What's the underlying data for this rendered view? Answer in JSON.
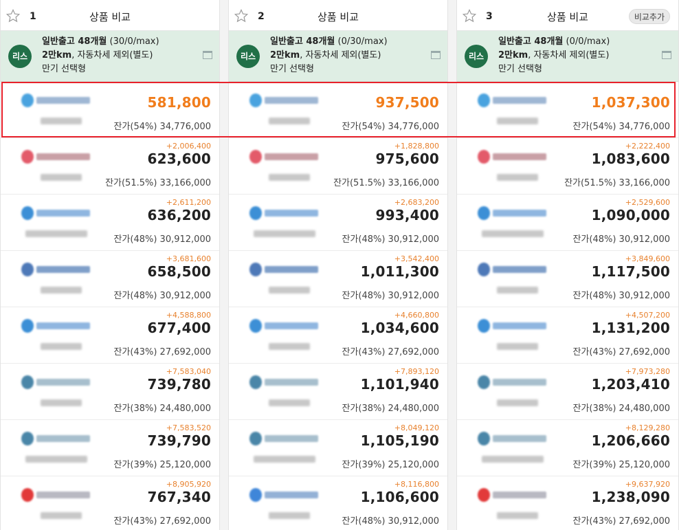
{
  "title": "상품 비교",
  "add_compare_label": "비교추가",
  "badge": "리스",
  "columns": [
    {
      "num": "1",
      "option": {
        "line1_bold": "일반출고 48개월",
        "line1_rest": " (30/0/max)",
        "line2_bold": "2만km",
        "line2_rest": ", 자동차세 제외(별도)",
        "line3": "만기 선택형"
      },
      "rows": [
        {
          "diff": "",
          "price": "581,800",
          "residual": "잔가(54%) 34,776,000",
          "logo": "kb"
        },
        {
          "diff": "+2,006,400",
          "price": "623,600",
          "residual": "잔가(51.5%) 33,166,000",
          "logo": "red"
        },
        {
          "diff": "+2,611,200",
          "price": "636,200",
          "residual": "잔가(48%) 30,912,000",
          "logo": "lotte"
        },
        {
          "diff": "+3,681,600",
          "price": "658,500",
          "residual": "잔가(48%) 30,912,000",
          "logo": "hyundai"
        },
        {
          "diff": "+4,588,800",
          "price": "677,400",
          "residual": "잔가(43%) 27,692,000",
          "logo": "lotte"
        },
        {
          "diff": "+7,583,040",
          "price": "739,780",
          "residual": "잔가(38%) 24,480,000",
          "logo": "shinhan"
        },
        {
          "diff": "+7,583,520",
          "price": "739,790",
          "residual": "잔가(39%) 25,120,000",
          "logo": "shinhan"
        },
        {
          "diff": "+8,905,920",
          "price": "767,340",
          "residual": "잔가(43%) 27,692,000",
          "logo": "redbox"
        }
      ]
    },
    {
      "num": "2",
      "option": {
        "line1_bold": "일반출고 48개월",
        "line1_rest": " (0/30/max)",
        "line2_bold": "2만km",
        "line2_rest": ", 자동차세 제외(별도)",
        "line3": "만기 선택형"
      },
      "rows": [
        {
          "diff": "",
          "price": "937,500",
          "residual": "잔가(54%) 34,776,000",
          "logo": "kb"
        },
        {
          "diff": "+1,828,800",
          "price": "975,600",
          "residual": "잔가(51.5%) 33,166,000",
          "logo": "red"
        },
        {
          "diff": "+2,683,200",
          "price": "993,400",
          "residual": "잔가(48%) 30,912,000",
          "logo": "lotte"
        },
        {
          "diff": "+3,542,400",
          "price": "1,011,300",
          "residual": "잔가(48%) 30,912,000",
          "logo": "hyundai"
        },
        {
          "diff": "+4,660,800",
          "price": "1,034,600",
          "residual": "잔가(43%) 27,692,000",
          "logo": "lotte"
        },
        {
          "diff": "+7,893,120",
          "price": "1,101,940",
          "residual": "잔가(38%) 24,480,000",
          "logo": "shinhan"
        },
        {
          "diff": "+8,049,120",
          "price": "1,105,190",
          "residual": "잔가(39%) 25,120,000",
          "logo": "shinhan"
        },
        {
          "diff": "+8,116,800",
          "price": "1,106,600",
          "residual": "잔가(48%) 30,912,000",
          "logo": "blue"
        }
      ]
    },
    {
      "num": "3",
      "option": {
        "line1_bold": "일반출고 48개월",
        "line1_rest": " (0/0/max)",
        "line2_bold": "2만km",
        "line2_rest": ", 자동차세 제외(별도)",
        "line3": "만기 선택형"
      },
      "rows": [
        {
          "diff": "",
          "price": "1,037,300",
          "residual": "잔가(54%) 34,776,000",
          "logo": "kb"
        },
        {
          "diff": "+2,222,400",
          "price": "1,083,600",
          "residual": "잔가(51.5%) 33,166,000",
          "logo": "red"
        },
        {
          "diff": "+2,529,600",
          "price": "1,090,000",
          "residual": "잔가(48%) 30,912,000",
          "logo": "lotte"
        },
        {
          "diff": "+3,849,600",
          "price": "1,117,500",
          "residual": "잔가(48%) 30,912,000",
          "logo": "hyundai"
        },
        {
          "diff": "+4,507,200",
          "price": "1,131,200",
          "residual": "잔가(43%) 27,692,000",
          "logo": "lotte"
        },
        {
          "diff": "+7,973,280",
          "price": "1,203,410",
          "residual": "잔가(38%) 24,480,000",
          "logo": "shinhan"
        },
        {
          "diff": "+8,129,280",
          "price": "1,206,660",
          "residual": "잔가(39%) 25,120,000",
          "logo": "shinhan"
        },
        {
          "diff": "+9,637,920",
          "price": "1,238,090",
          "residual": "잔가(43%) 27,692,000",
          "logo": "redbox"
        }
      ]
    }
  ],
  "colors": {
    "badge": "#217048",
    "option_bg": "#dfeee4",
    "best_price": "#f17d1c",
    "diff": "#e8812d",
    "highlight": "#e8212b"
  },
  "icons": {
    "favorite": "star-outline-icon",
    "expand": "window-icon"
  }
}
